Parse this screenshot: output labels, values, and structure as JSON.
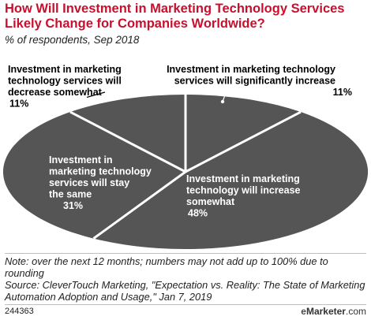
{
  "chart_data": {
    "type": "pie",
    "title": "How Will Investment in Marketing Technology Services Likely Change for Companies Worldwide?",
    "subtitle": "% of respondents, Sep 2018",
    "slices": [
      {
        "label": [
          "Investment in marketing technology",
          "services will significantly increase"
        ],
        "value": 11,
        "value_label": "11%"
      },
      {
        "label": [
          "Investment in marketing",
          "technology will increase",
          "somewhat"
        ],
        "value": 48,
        "value_label": "48%"
      },
      {
        "label": [
          "Investment in",
          "marketing technology",
          "services will stay",
          "the same"
        ],
        "value": 31,
        "value_label": "31%"
      },
      {
        "label": [
          "Investment in marketing",
          "technology services will",
          "decrease somewhat"
        ],
        "value": 11,
        "value_label": "11%"
      }
    ],
    "colors": {
      "fill": "#555555",
      "divider": "#ffffff",
      "label_text": "#ffffff",
      "outside_text": "#000000"
    }
  },
  "footer": {
    "note": "Note: over the next 12 months; numbers may not add up to 100% due to rounding",
    "source": "Source: CleverTouch Marketing, \"Expectation vs. Reality: The State of Marketing Automation Adoption and Usage,\" Jan 7, 2019",
    "chart_id": "244363",
    "brand_e": "e",
    "brand_rest": "Marketer",
    "brand_com": ".com"
  }
}
